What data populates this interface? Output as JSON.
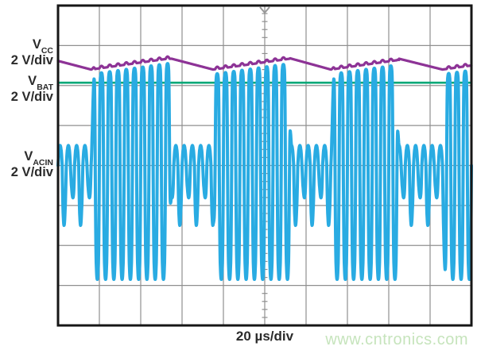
{
  "scope": {
    "label_color": "#2b2b2b",
    "watermark": "www.cntronics.com",
    "watermark_color": "#c6e4bc",
    "time_label": "20 µs/div",
    "grid": {
      "h_divisions": 10,
      "v_divisions": 8,
      "minor_ticks_per_div": 5,
      "line_color": "#8f8f8f",
      "border_color": "#161616",
      "trigger_marker": "down-chevron",
      "trigger_marker_color": "#989898"
    },
    "channels": [
      {
        "id": "vcc",
        "label_main": "V",
        "label_sub": "CC",
        "scale": "2 V/div",
        "color": "#8d3396"
      },
      {
        "id": "vbat",
        "label_main": "V",
        "label_sub": "BAT",
        "scale": "2 V/div",
        "color": "#00a878"
      },
      {
        "id": "vacin",
        "label_main": "V",
        "label_sub": "ACIN",
        "scale": "2 V/div",
        "color": "#29abe2"
      }
    ]
  },
  "chart_data": {
    "type": "line",
    "title": "",
    "xlabel": "20 µs/div",
    "legend_position": "left",
    "grid": "on",
    "x_axis": {
      "us_per_div": 20,
      "divisions": 10,
      "total_us": 200
    },
    "y_axis": {
      "divisions": 8,
      "volts_per_div": 2
    },
    "series": [
      {
        "name": "VCC",
        "scale_volts_per_div": 2,
        "behavior": "slow decay during idle, stepped ramp-up with switching ripple during each AC burst",
        "level_range_div_above_center": [
          2.4,
          2.67
        ]
      },
      {
        "name": "VBAT",
        "scale_volts_per_div": 2,
        "behavior": "constant battery voltage",
        "level_div_above_center": 2.07
      },
      {
        "name": "VACIN",
        "scale_volts_per_div": 2,
        "behavior": "250 kHz AC input: low-amplitude ringing during idle, full-amplitude clipped bursts during power transfer"
      }
    ],
    "waveform": {
      "carrier_period_us": 4,
      "sample_step_us": 0.08,
      "edge_ramp_us": 1.6,
      "burst_nominal_len_us": 37,
      "bursts_us": [
        [
          16,
          55
        ],
        [
          75,
          113
        ],
        [
          132,
          165
        ],
        [
          186,
          203
        ]
      ],
      "vcc": {
        "high_div": 2.67,
        "low_div": 2.4,
        "ripple_div": 0.055
      },
      "vbat": {
        "level_div": 2.07
      },
      "vacin": {
        "idle_amp_up_div": 0.5,
        "idle_amp_down_base_div": 1.13,
        "idle_amp_down_var_div": 0.5,
        "burst_amp_down_div": 2.85,
        "burst_top_gap_div": 0.12,
        "idle_shape_k": 0.8,
        "burst_top_shape_k": 2.4,
        "burst_bottom_shape_k": 1.5
      }
    }
  }
}
